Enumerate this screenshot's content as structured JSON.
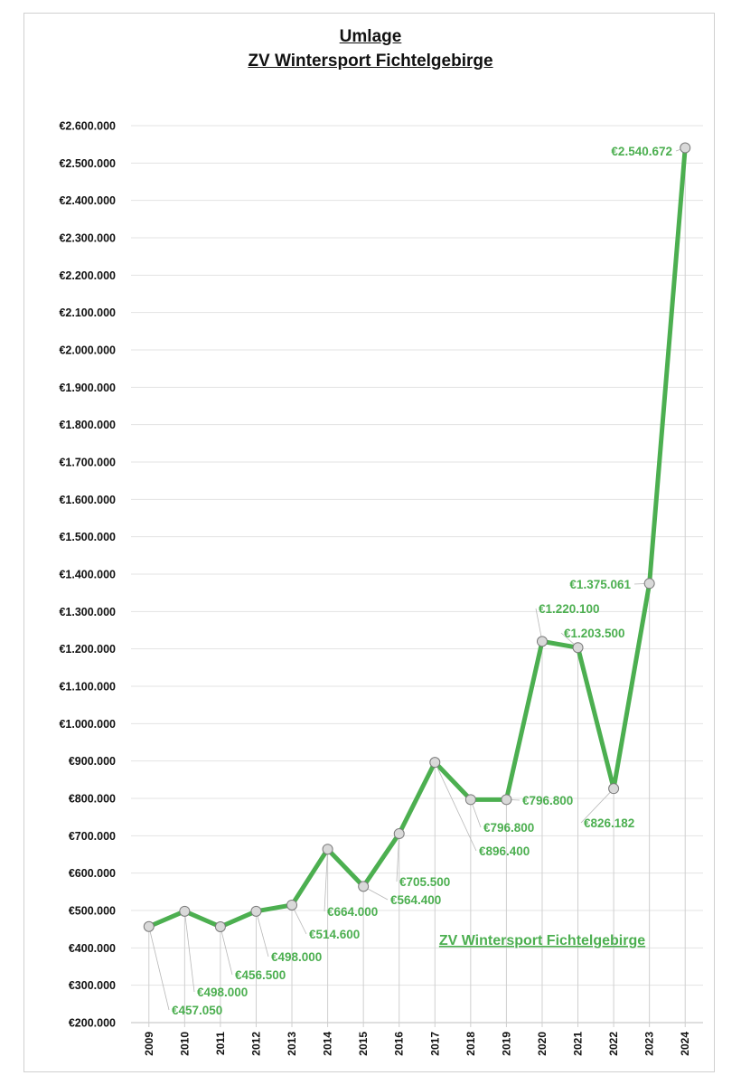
{
  "chart_data": {
    "type": "line",
    "title": "Umlage",
    "subtitle": "ZV Wintersport Fichtelgebirge",
    "xlabel": "",
    "ylabel": "",
    "ylim": [
      200000,
      2600000
    ],
    "y_ticks": [
      "€200.000",
      "€300.000",
      "€400.000",
      "€500.000",
      "€600.000",
      "€700.000",
      "€800.000",
      "€900.000",
      "€1.000.000",
      "€1.100.000",
      "€1.200.000",
      "€1.300.000",
      "€1.400.000",
      "€1.500.000",
      "€1.600.000",
      "€1.700.000",
      "€1.800.000",
      "€1.900.000",
      "€2.000.000",
      "€2.100.000",
      "€2.200.000",
      "€2.300.000",
      "€2.400.000",
      "€2.500.000",
      "€2.600.000"
    ],
    "categories": [
      "2009",
      "2010",
      "2011",
      "2012",
      "2013",
      "2014",
      "2015",
      "2016",
      "2017",
      "2018",
      "2019",
      "2020",
      "2021",
      "2022",
      "2023",
      "2024"
    ],
    "series": [
      {
        "name": "ZV Wintersport Fichtelgebirge",
        "color": "#4caf50",
        "values": [
          457050,
          498000,
          456500,
          498000,
          514600,
          664000,
          564400,
          705500,
          896400,
          796800,
          796800,
          1220100,
          1203500,
          826182,
          1375061,
          2540672
        ],
        "data_labels": [
          "€457.050",
          "€498.000",
          "€456.500",
          "€498.000",
          "€514.600",
          "€664.000",
          "€564.400",
          "€705.500",
          "€896.400",
          "€796.800",
          "€796.800",
          "€1.220.100",
          "€1.203.500",
          "€826.182",
          "€1.375.061",
          "€2.540.672"
        ]
      }
    ],
    "grid": true,
    "legend_position": "bottom-center"
  }
}
